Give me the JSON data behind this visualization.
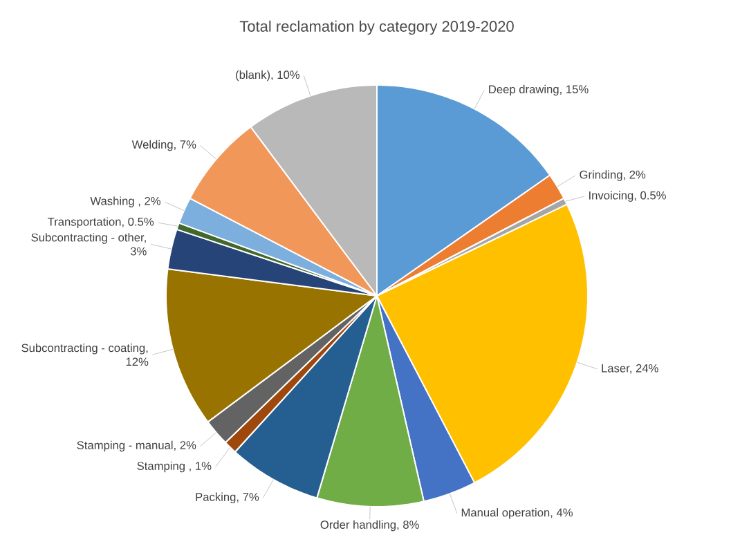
{
  "chart_data": {
    "type": "pie",
    "title": "Total reclamation by category 2019-2020",
    "categories": [
      "Deep drawing, 15%",
      "Grinding, 2%",
      "Invoicing, 0.5%",
      "Laser, 24%",
      "Manual operation, 4%",
      "Order handling, 8%",
      "Packing, 7%",
      "Stamping , 1%",
      "Stamping - manual, 2%",
      "Subcontracting - coating, 12%",
      "Subcontracting - other, 3%",
      "Transportation, 0.5%",
      "Washing , 2%",
      "Welding, 7%",
      "(blank), 10%"
    ],
    "values": [
      15,
      2,
      0.5,
      24,
      4,
      8,
      7,
      1,
      2,
      12,
      3,
      0.5,
      2,
      7,
      10
    ],
    "colors": [
      "#5b9bd5",
      "#ed7d31",
      "#a5a5a5",
      "#ffc000",
      "#4472c4",
      "#70ad47",
      "#255e91",
      "#9e480e",
      "#636363",
      "#997300",
      "#264478",
      "#43682b",
      "#7cafdd",
      "#f1975a",
      "#b9b9b9"
    ]
  }
}
